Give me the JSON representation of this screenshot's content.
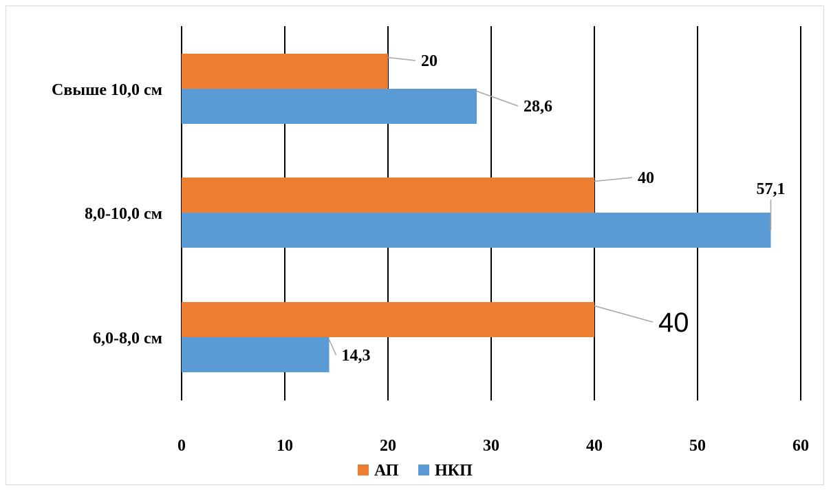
{
  "chart_data": {
    "type": "bar",
    "orientation": "horizontal",
    "categories": [
      "Свыше 10,0 см",
      "8,0-10,0 см",
      "6,0-8,0 см"
    ],
    "series": [
      {
        "name": "АП",
        "color": "#ED7D31",
        "values": [
          20,
          40,
          40
        ],
        "labels": [
          "20",
          "40",
          "40"
        ]
      },
      {
        "name": "НКП",
        "color": "#5B9BD5",
        "values": [
          28.6,
          57.1,
          14.3
        ],
        "labels": [
          "28,6",
          "57,1",
          "14,3"
        ]
      }
    ],
    "xlim": [
      0,
      60
    ],
    "xticks": [
      0,
      10,
      20,
      30,
      40,
      50,
      60
    ],
    "xtick_labels": [
      "0",
      "10",
      "20",
      "30",
      "40",
      "50",
      "60"
    ],
    "grid": "vertical",
    "legend": {
      "position": "bottom",
      "entries": [
        "АП",
        "НКП"
      ]
    }
  }
}
